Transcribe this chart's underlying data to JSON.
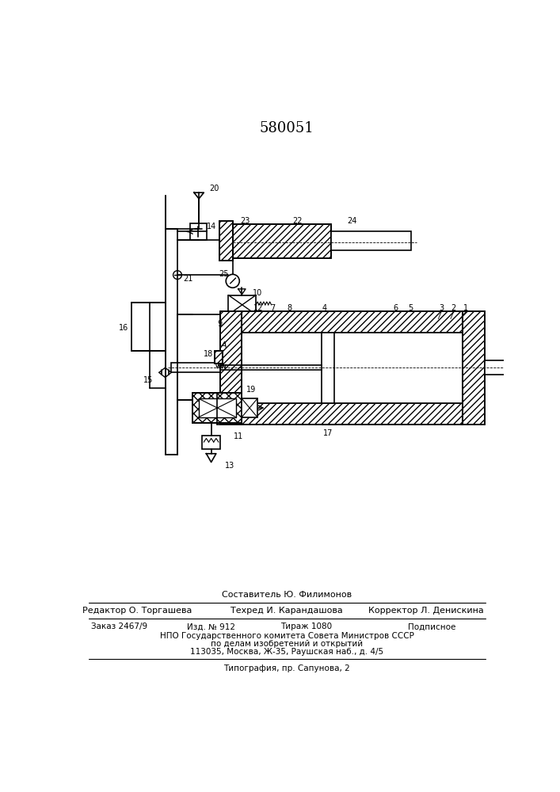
{
  "patent_number": "580051",
  "bg_color": "#ffffff",
  "line_color": "#000000",
  "footer_line1": "Составитель Ю. Филимонов",
  "footer_line2_col1": "Редактор О. Торгашева",
  "footer_line2_col2": "Техред И. Карандашова",
  "footer_line2_col3": "Корректор Л. Денискина",
  "footer_line3_col1": "Заказ 2467/9",
  "footer_line3_col2": "Изд. № 912",
  "footer_line3_col3": "Тираж 1080",
  "footer_line3_col4": "Подписное",
  "footer_line4": "НПО Государственного комитета Совета Министров СССР",
  "footer_line5": "по делам изобретений и открытий",
  "footer_line6": "113035, Москва, Ж-35, Раушская наб., д. 4/5",
  "footer_line7": "Типография, пр. Сапунова, 2"
}
